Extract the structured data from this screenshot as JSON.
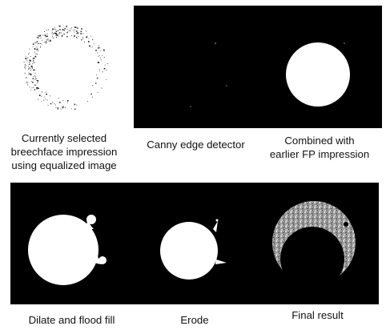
{
  "panels": [
    {
      "caption": [
        "Currently selected",
        "breechface impression",
        "using equalized image"
      ]
    },
    {
      "caption": [
        "Canny edge detector"
      ]
    },
    {
      "caption": [
        "Combined with",
        "earlier FP impression"
      ]
    },
    {
      "caption": [
        "Dilate and flood fill"
      ]
    },
    {
      "caption": [
        "Erode"
      ]
    },
    {
      "caption": [
        "Final result"
      ]
    }
  ],
  "colors": {
    "background": "#000000",
    "foreground": "#ffffff",
    "page": "#ffffff"
  }
}
